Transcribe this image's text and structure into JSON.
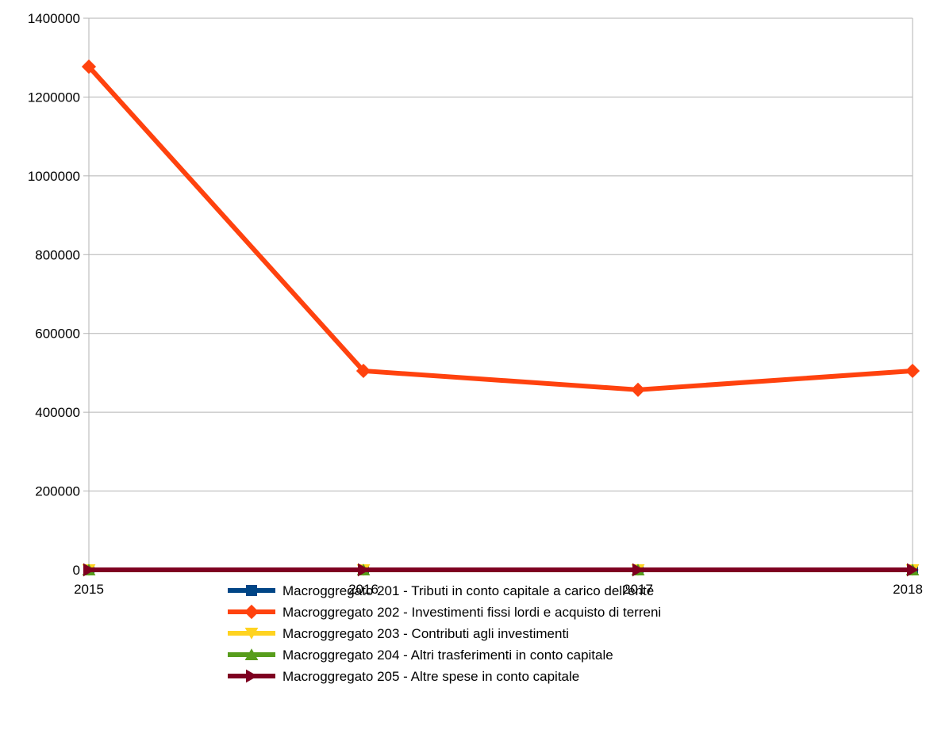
{
  "chart_data": {
    "type": "line",
    "title": "",
    "xlabel": "",
    "ylabel": "",
    "x": [
      "2015",
      "2016",
      "2017",
      "2018"
    ],
    "ylim": [
      0,
      1400000
    ],
    "yticks": [
      0,
      200000,
      400000,
      600000,
      800000,
      1000000,
      1200000,
      1400000
    ],
    "ytick_labels": [
      "0",
      "200000",
      "400000",
      "600000",
      "800000",
      "1000000",
      "1200000",
      "1400000"
    ],
    "grid": "horizontal",
    "legend_position": "bottom",
    "series": [
      {
        "name": "Macroggregato 201 - Tributi in conto capitale a carico dell'ente",
        "values": [
          0,
          0,
          0,
          0
        ],
        "color": "#004586",
        "marker": "square"
      },
      {
        "name": "Macroggregato 202 - Investimenti fissi lordi e acquisto di terreni",
        "values": [
          1277000,
          505000,
          457000,
          505000
        ],
        "color": "#ff420e",
        "marker": "diamond"
      },
      {
        "name": "Macroggregato 203 - Contributi agli investimenti",
        "values": [
          0,
          0,
          0,
          0
        ],
        "color": "#ffd320",
        "marker": "triangle-down"
      },
      {
        "name": "Macroggregato 204 - Altri trasferimenti in conto capitale",
        "values": [
          0,
          0,
          0,
          0
        ],
        "color": "#579d1c",
        "marker": "triangle-up"
      },
      {
        "name": "Macroggregato 205 - Altre spese in conto capitale",
        "values": [
          0,
          0,
          0,
          0
        ],
        "color": "#7e0021",
        "marker": "triangle-right"
      }
    ]
  }
}
